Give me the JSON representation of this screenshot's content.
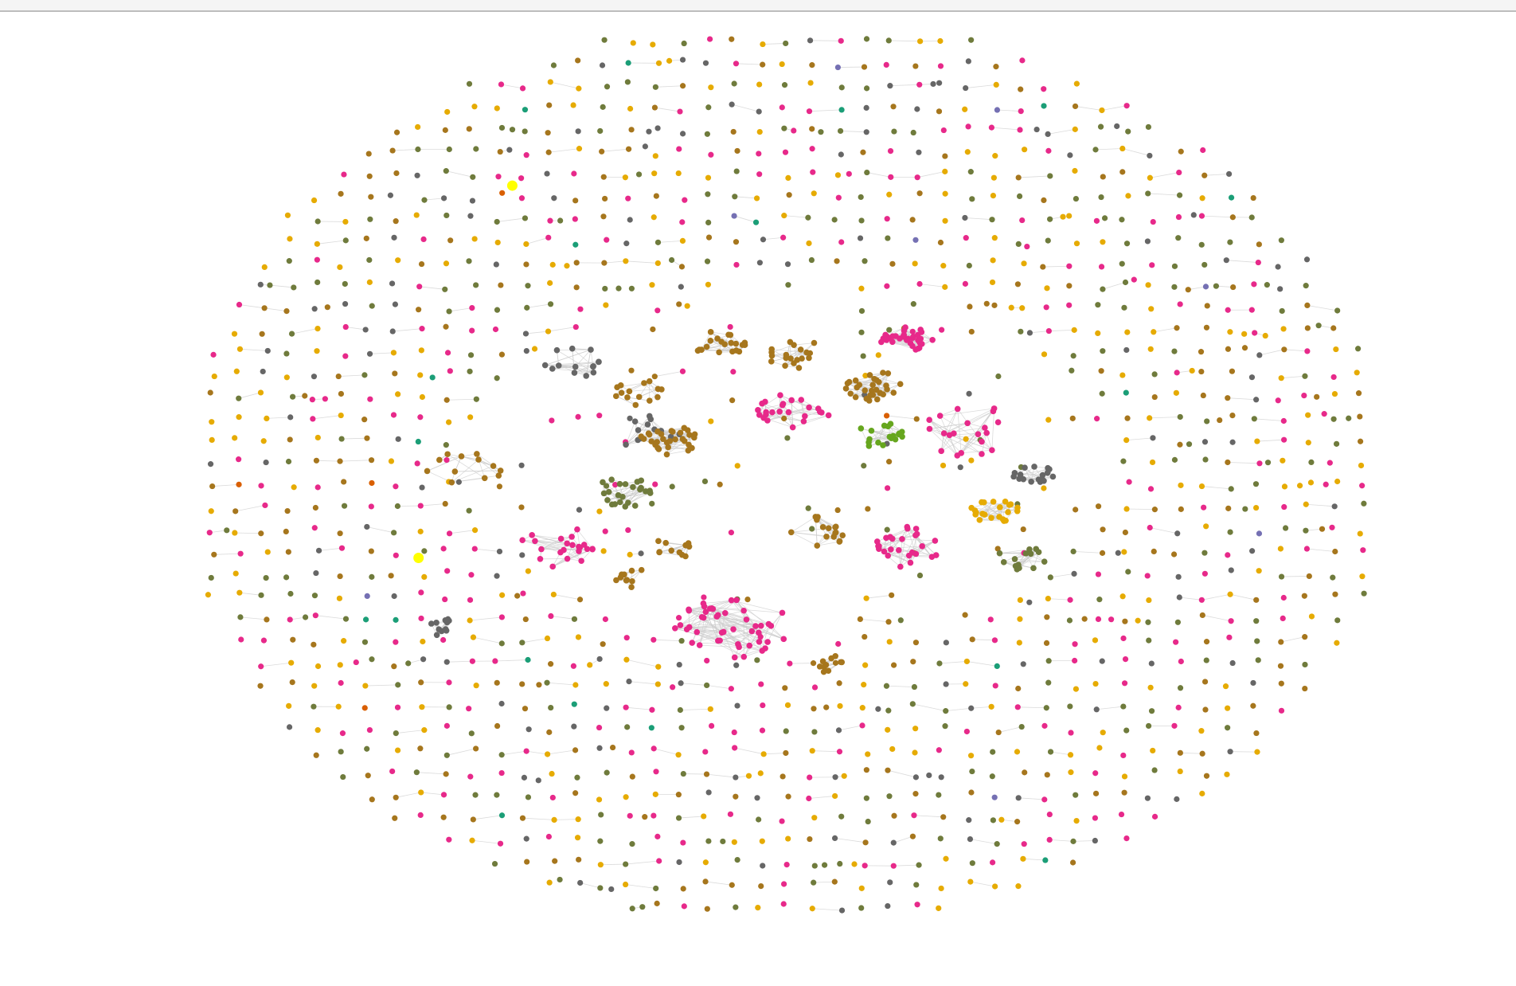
{
  "palette": {
    "pink": "#e7298a",
    "brown": "#a6761d",
    "gold": "#e6ab02",
    "olive": "#6f7b3c",
    "grey": "#666666",
    "green": "#66a61e",
    "teal": "#1b9e77",
    "purple": "#7570b3",
    "orange": "#d95f02",
    "highlight": "#ffff00",
    "edge": "#cccccc"
  },
  "graph": {
    "type": "force-directed network",
    "background_node_colors": [
      "brown",
      "gold",
      "olive",
      "pink",
      "grey",
      "brown",
      "gold",
      "pink",
      "olive"
    ],
    "highlighted_nodes": 2,
    "communities": [
      {
        "color": "grey",
        "size": 14
      },
      {
        "color": "brown",
        "size": 14
      },
      {
        "color": "grey",
        "size": 12
      },
      {
        "color": "brown",
        "size": 30
      },
      {
        "color": "brown",
        "size": 22
      },
      {
        "color": "brown",
        "size": 18
      },
      {
        "color": "pink",
        "size": 24
      },
      {
        "color": "brown",
        "size": 30
      },
      {
        "color": "green",
        "size": 18
      },
      {
        "color": "pink",
        "size": 20
      },
      {
        "color": "pink",
        "size": 34
      },
      {
        "color": "brown",
        "size": 12
      },
      {
        "color": "pink",
        "size": 22
      },
      {
        "color": "olive",
        "size": 24
      },
      {
        "color": "brown",
        "size": 16
      },
      {
        "color": "pink",
        "size": 26
      },
      {
        "color": "gold",
        "size": 22
      },
      {
        "color": "grey",
        "size": 18
      },
      {
        "color": "grey",
        "size": 10
      },
      {
        "color": "pink",
        "size": 46
      },
      {
        "color": "brown",
        "size": 12
      },
      {
        "color": "brown",
        "size": 10
      },
      {
        "color": "brown",
        "size": 10
      },
      {
        "color": "olive",
        "size": 14
      }
    ]
  }
}
